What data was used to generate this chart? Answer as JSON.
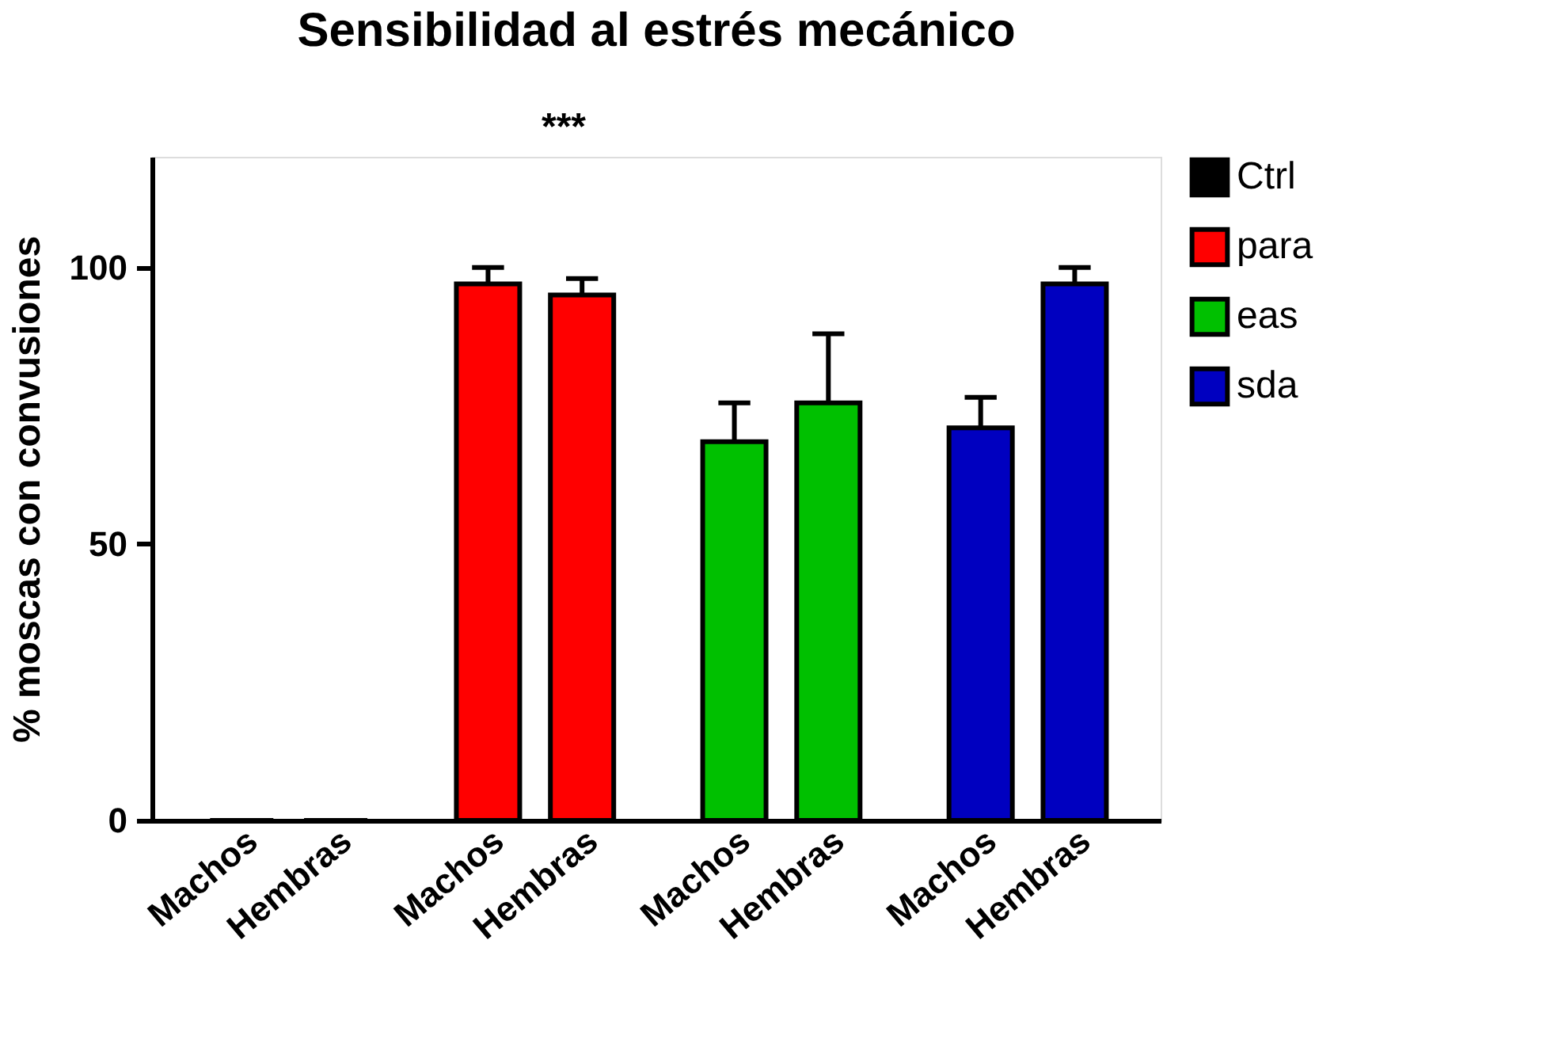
{
  "chart_data": {
    "type": "bar",
    "title": "Sensibilidad al estrés mecánico",
    "ylabel": "% moscas con convusiones",
    "categories": [
      "Machos",
      "Hembras",
      "Machos",
      "Hembras",
      "Machos",
      "Hembras",
      "Machos",
      "Hembras"
    ],
    "series": [
      {
        "name": "Ctrl",
        "color": "#000000",
        "values": [
          0,
          0,
          null,
          null,
          null,
          null,
          null,
          null
        ]
      },
      {
        "name": "para",
        "color": "#ff0000",
        "values": [
          null,
          null,
          97,
          95,
          null,
          null,
          null,
          null
        ],
        "errors": [
          null,
          null,
          [
            97,
            100
          ],
          [
            95,
            98
          ],
          null,
          null,
          null,
          null
        ]
      },
      {
        "name": "eas",
        "color": "#00c000",
        "values": [
          null,
          null,
          null,
          null,
          68.5,
          75.5,
          null,
          null
        ],
        "errors": [
          null,
          null,
          null,
          null,
          [
            68.5,
            75.5
          ],
          [
            75.5,
            88
          ],
          null,
          null
        ]
      },
      {
        "name": "sda",
        "color": "#0000c0",
        "values": [
          null,
          null,
          null,
          null,
          null,
          null,
          71,
          97
        ],
        "errors": [
          null,
          null,
          null,
          null,
          null,
          null,
          [
            71,
            76.5
          ],
          [
            97,
            100
          ]
        ]
      }
    ],
    "ylim": [
      0,
      120
    ],
    "yticks": [
      0,
      50,
      100
    ],
    "grid": false,
    "legend": "top right",
    "annotations": [
      "***"
    ]
  }
}
